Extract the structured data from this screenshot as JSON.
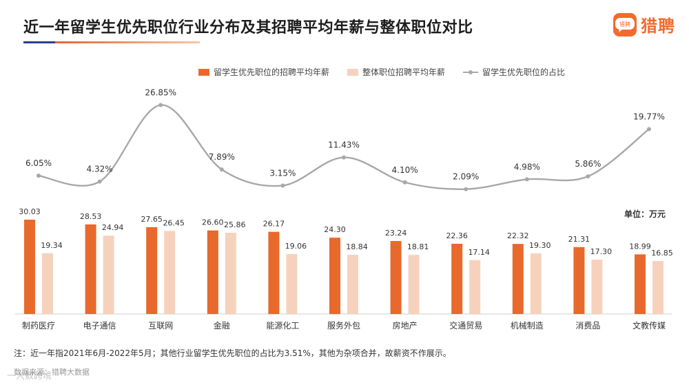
{
  "header": {
    "title": "近一年留学生优先职位行业分布及其招聘平均年薪与整体职位对比",
    "brand_name": "猎聘",
    "brand_badge_text": "猎聘",
    "accent_color": "#f26a2e"
  },
  "unit_label": "单位：万元",
  "footnote": "注：近一年指2021年6月-2022年5月；其他行业留学生优先职位的占比为3.51%，其他为杂项合并，故薪资不作展示。",
  "source": "数据来源：猎聘大数据",
  "watermark": "一大数跨境",
  "chart_data": {
    "type": "bar",
    "title": "近一年留学生优先职位行业分布及其招聘平均年薪与整体职位对比",
    "categories": [
      "制药医疗",
      "电子通信",
      "互联网",
      "金融",
      "能源化工",
      "服务外包",
      "房地产",
      "交通贸易",
      "机械制造",
      "消费品",
      "文教传媒"
    ],
    "series": [
      {
        "name": "留学生优先职位的招聘平均年薪",
        "kind": "bar",
        "color": "#e8692c",
        "values": [
          30.03,
          28.53,
          27.65,
          26.6,
          26.17,
          24.3,
          23.24,
          22.36,
          22.32,
          21.31,
          18.99
        ]
      },
      {
        "name": "整体职位招聘平均年薪",
        "kind": "bar",
        "color": "#f6d2bc",
        "values": [
          19.34,
          24.94,
          26.45,
          25.86,
          19.06,
          18.84,
          18.81,
          17.14,
          19.3,
          17.3,
          16.85
        ]
      },
      {
        "name": "留学生优先职位的占比",
        "kind": "line",
        "color": "#a8a8a8",
        "unit": "%",
        "values": [
          6.05,
          4.32,
          26.85,
          7.89,
          3.15,
          11.43,
          4.1,
          2.09,
          4.98,
          5.86,
          19.77
        ]
      }
    ],
    "ylabel": "万元",
    "ylim": [
      0,
      32
    ],
    "line_ylim": [
      0,
      30
    ],
    "legend_position": "top-center",
    "grid": false
  }
}
